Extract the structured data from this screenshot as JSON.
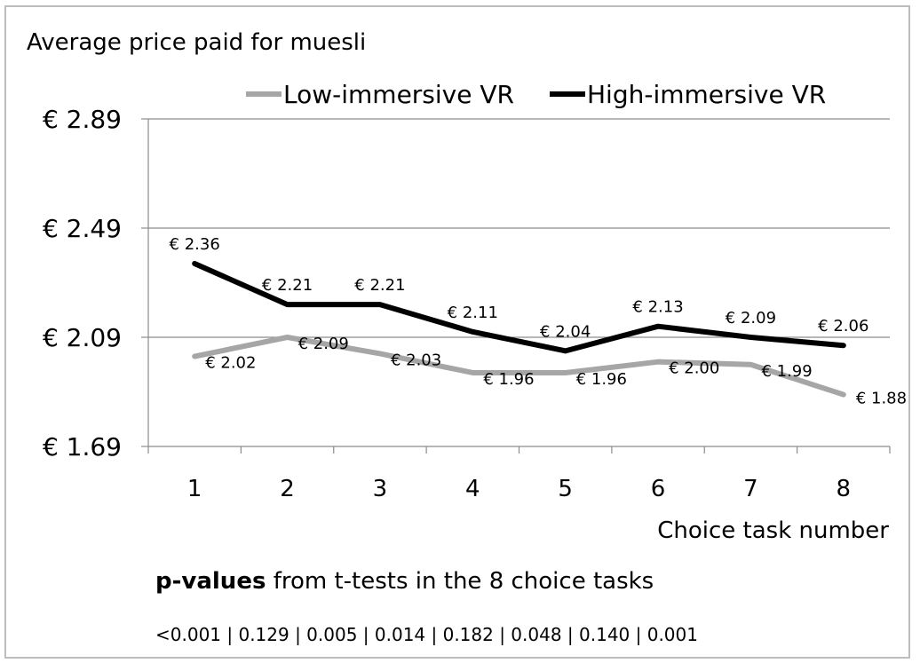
{
  "chart_data": {
    "type": "line",
    "title": "Average price paid for muesli",
    "xlabel": "Choice task number",
    "ylabel": "",
    "categories": [
      "1",
      "2",
      "3",
      "4",
      "5",
      "6",
      "7",
      "8"
    ],
    "yticks": [
      "€ 1.69",
      "€ 2.09",
      "€ 2.49",
      "€ 2.89"
    ],
    "ytick_values": [
      1.69,
      2.09,
      2.49,
      2.89
    ],
    "ylim": [
      1.69,
      2.89
    ],
    "grid": "horizontal",
    "legend_position": "top",
    "series": [
      {
        "name": "Low-immersive VR",
        "color": "#a6a6a6",
        "values": [
          2.02,
          2.09,
          2.03,
          1.96,
          1.96,
          2.0,
          1.99,
          1.88
        ],
        "labels": [
          "€ 2.02",
          "€ 2.09",
          "€ 2.03",
          "€ 1.96",
          "€ 1.96",
          "€ 2.00",
          "€ 1.99",
          "€ 1.88"
        ]
      },
      {
        "name": "High-immersive VR",
        "color": "#000000",
        "values": [
          2.36,
          2.21,
          2.21,
          2.11,
          2.04,
          2.13,
          2.09,
          2.06
        ],
        "labels": [
          "€ 2.36",
          "€ 2.21",
          "€ 2.21",
          "€ 2.11",
          "€ 2.04",
          "€ 2.13",
          "€ 2.09",
          "€ 2.06"
        ]
      }
    ]
  },
  "pvalues": {
    "title_bold": "p-values",
    "title_rest": " from t-tests in the 8 choice tasks",
    "row": "<0.001  |  0.129  |  0.005  |  0.014  |  0.182  |  0.048  |  0.140  |  0.001"
  }
}
